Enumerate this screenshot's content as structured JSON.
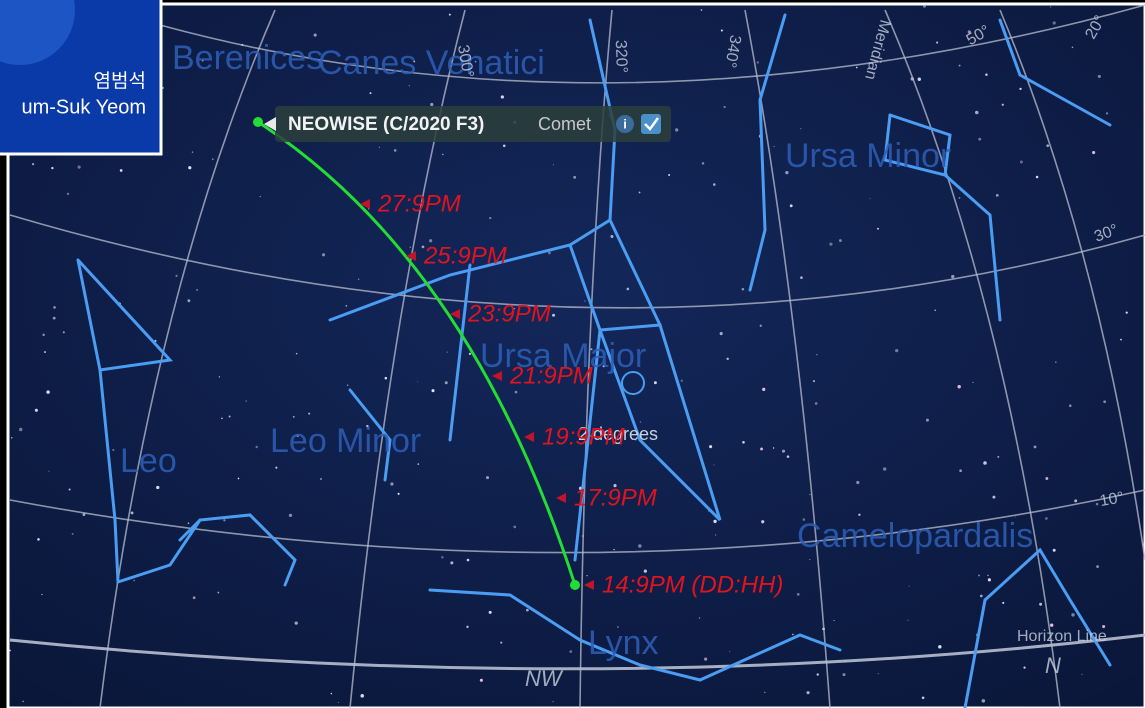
{
  "logo": {
    "korean": "염범석",
    "name": "um-Suk Yeom"
  },
  "constellations": [
    "Berenices",
    "Canes Venatici",
    "Ursa Minor",
    "Ursa Major",
    "Leo Minor",
    "Leo",
    "Camelopardalis",
    "Lynx"
  ],
  "grid_labels": [
    "300°",
    "320°",
    "340°",
    "Meridian",
    "50°",
    "20°",
    "30°",
    "10°"
  ],
  "horizon": "Horizon Line",
  "directions": [
    "NW",
    "N"
  ],
  "object": {
    "name": "NEOWISE (C/2020 F3)",
    "type": "Comet",
    "info": "i"
  },
  "dates": [
    "27:9PM",
    "25:9PM",
    "23:9PM",
    "21:9PM",
    "19:9PM",
    "17:9PM",
    "14:9PM (DD:HH)"
  ],
  "scale": "2 degrees"
}
